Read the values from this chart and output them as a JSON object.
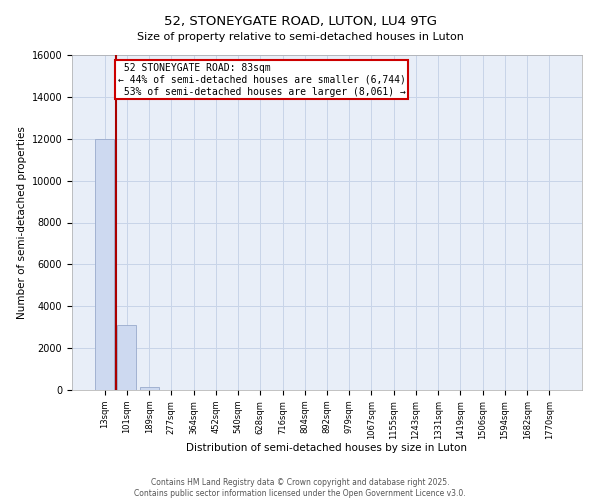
{
  "title": "52, STONEYGATE ROAD, LUTON, LU4 9TG",
  "subtitle": "Size of property relative to semi-detached houses in Luton",
  "xlabel": "Distribution of semi-detached houses by size in Luton",
  "ylabel": "Number of semi-detached properties",
  "categories": [
    "13sqm",
    "101sqm",
    "189sqm",
    "277sqm",
    "364sqm",
    "452sqm",
    "540sqm",
    "628sqm",
    "716sqm",
    "804sqm",
    "892sqm",
    "979sqm",
    "1067sqm",
    "1155sqm",
    "1243sqm",
    "1331sqm",
    "1419sqm",
    "1506sqm",
    "1594sqm",
    "1682sqm",
    "1770sqm"
  ],
  "values": [
    12000,
    3100,
    150,
    20,
    5,
    2,
    1,
    0,
    0,
    0,
    0,
    0,
    0,
    0,
    0,
    0,
    0,
    0,
    0,
    0,
    0
  ],
  "bar_color": "#cdd9f0",
  "bar_edge_color": "#99aacc",
  "grid_color": "#c8d4e8",
  "background_color": "#e8eef8",
  "ylim": [
    0,
    16000
  ],
  "yticks": [
    0,
    2000,
    4000,
    6000,
    8000,
    10000,
    12000,
    14000,
    16000
  ],
  "property_size": 83,
  "property_label": "52 STONEYGATE ROAD: 83sqm",
  "pct_smaller": 44,
  "count_smaller": 6744,
  "pct_larger": 53,
  "count_larger": 8061,
  "vline_color": "#aa0000",
  "annotation_box_color": "#cc0000",
  "footer_line1": "Contains HM Land Registry data © Crown copyright and database right 2025.",
  "footer_line2": "Contains public sector information licensed under the Open Government Licence v3.0."
}
